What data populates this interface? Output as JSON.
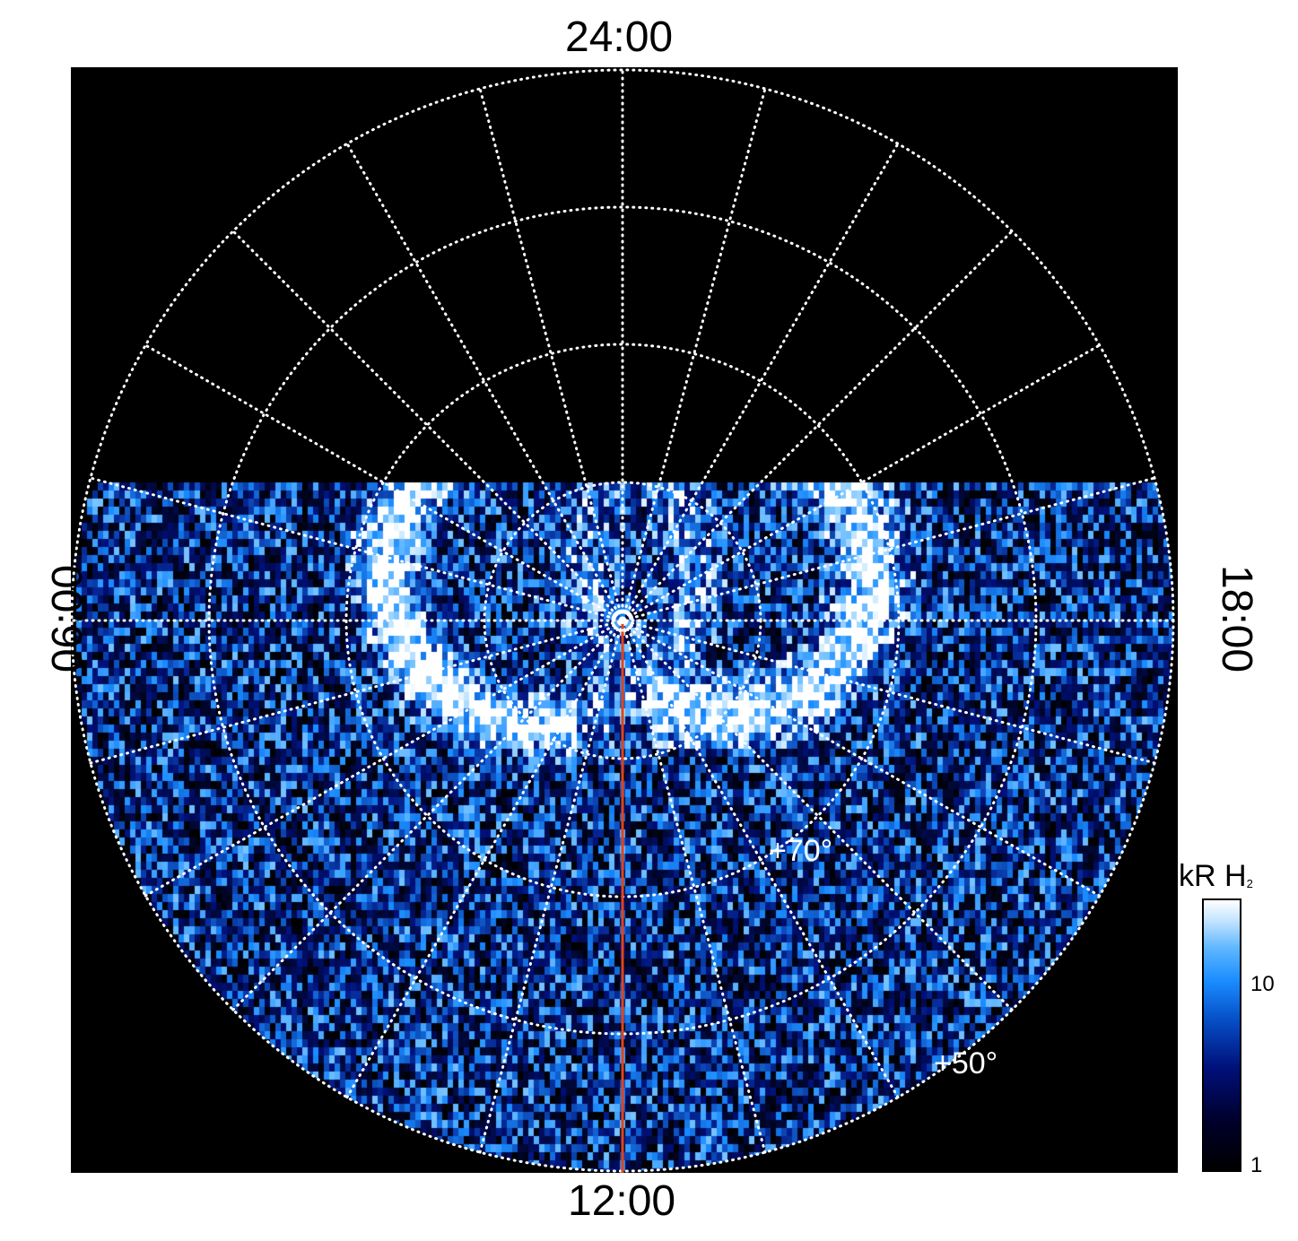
{
  "chart_data": {
    "type": "heatmap",
    "projection": "polar",
    "local_time_labels": {
      "top": "24:00",
      "bottom": "12:00",
      "left": "06:00",
      "right": "18:00"
    },
    "latitude_labels": [
      "+70°",
      "+50°"
    ],
    "colorbar": {
      "title": "kR H",
      "title_subscript": "2",
      "scale": "log",
      "range": [
        1,
        25
      ],
      "tick_labels": [
        "10",
        "1"
      ],
      "colors": [
        "#000000",
        "#00107a",
        "#1a8cff",
        "#ffffff"
      ]
    },
    "grid": true,
    "grid_color": "#ffffff",
    "meridian_line_color": "#e0441c",
    "background": "#000000"
  }
}
